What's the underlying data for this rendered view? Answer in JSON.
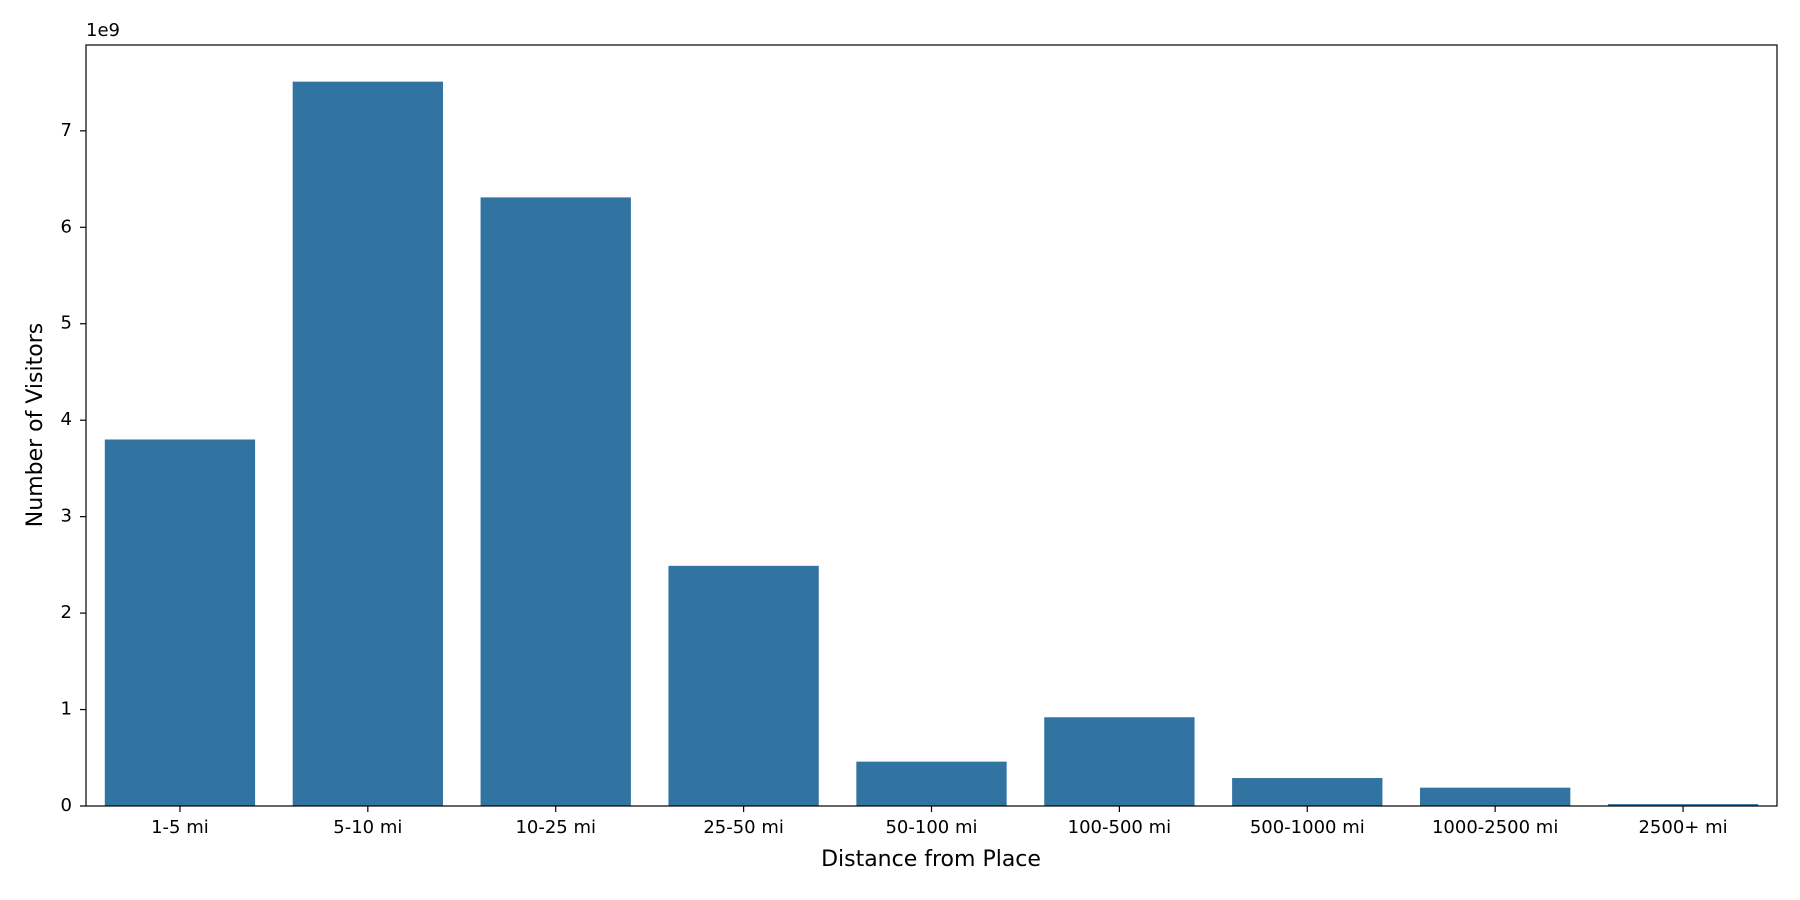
{
  "chart_data": {
    "type": "bar",
    "x_label": "Distance from Place",
    "y_label": "Number of Visitors",
    "y_offset_label": "1e9",
    "categories": [
      "1-5 mi",
      "5-10 mi",
      "10-25 mi",
      "25-50 mi",
      "50-100 mi",
      "100-500 mi",
      "500-1000 mi",
      "1000-2500 mi",
      "2500+ mi"
    ],
    "values": [
      3.8,
      7.51,
      6.31,
      2.49,
      0.46,
      0.92,
      0.29,
      0.19,
      0.02
    ],
    "color": "#3274a1",
    "ylim": [
      0,
      7.89
    ],
    "yticks": [
      0,
      1,
      2,
      3,
      4,
      5,
      6,
      7
    ],
    "grid": false
  }
}
